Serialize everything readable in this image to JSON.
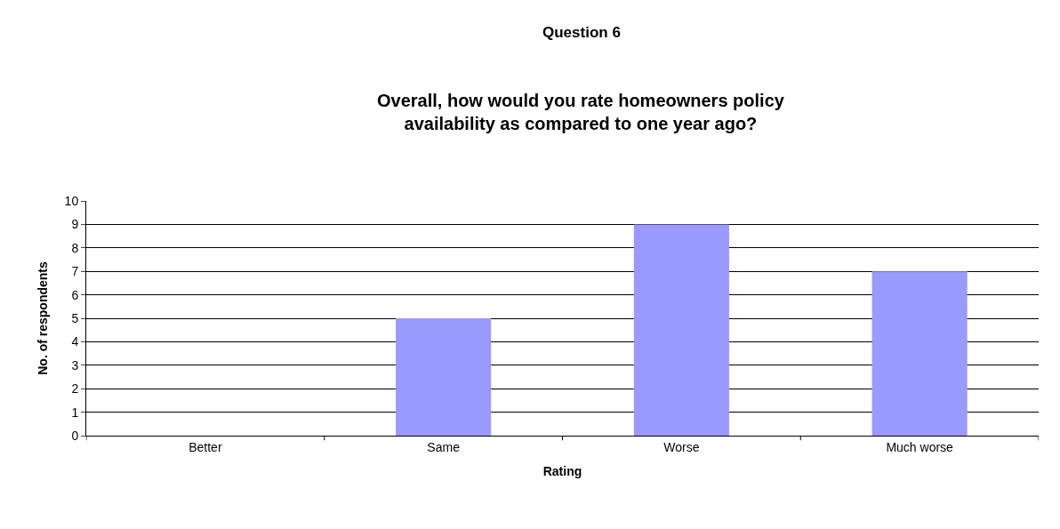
{
  "chart_data": {
    "type": "bar",
    "title": "Question 6",
    "subtitle": "Overall, how would you rate homeowners policy\navailability as compared to one year ago?",
    "xlabel": "Rating",
    "ylabel": "No. of respondents",
    "categories": [
      "Better",
      "Same",
      "Worse",
      "Much worse"
    ],
    "values": [
      0,
      5,
      9,
      7
    ],
    "color": "#9999ff",
    "ylim": [
      0,
      10
    ],
    "yticks": [
      0,
      1,
      2,
      3,
      4,
      5,
      6,
      7,
      8,
      9,
      10
    ],
    "grid": "y",
    "legend": false
  }
}
